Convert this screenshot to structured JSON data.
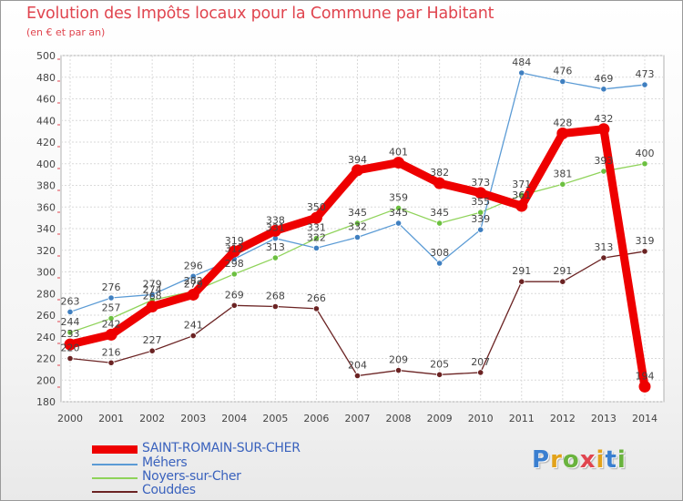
{
  "title": "Evolution des Impôts locaux pour la Commune par Habitant",
  "subtitle": "(en € et par an)",
  "logo": {
    "letters": [
      {
        "ch": "P",
        "color": "#3a7fd0"
      },
      {
        "ch": "r",
        "color": "#e2a21a"
      },
      {
        "ch": "o",
        "color": "#6ab33e"
      },
      {
        "ch": "x",
        "color": "#e0454f"
      },
      {
        "ch": "i",
        "color": "#e2a21a"
      },
      {
        "ch": "t",
        "color": "#3a7fd0"
      },
      {
        "ch": "i",
        "color": "#6ab33e"
      }
    ]
  },
  "chart_data": {
    "type": "line",
    "title": "Evolution des Impôts locaux pour la Commune par Habitant",
    "subtitle": "(en € et par an)",
    "x": [
      2000,
      2001,
      2002,
      2003,
      2004,
      2005,
      2006,
      2007,
      2008,
      2009,
      2010,
      2011,
      2012,
      2013,
      2014
    ],
    "ylim": [
      180,
      500
    ],
    "ytick_step": 20,
    "grid": true,
    "legend_position": "bottom-left",
    "series": [
      {
        "name": "SAINT-ROMAIN-SUR-CHER",
        "color": "#ee0000",
        "emphasis": true,
        "values": [
          233,
          242,
          268,
          279,
          319,
          338,
          350,
          394,
          401,
          382,
          373,
          361,
          428,
          432,
          194
        ],
        "labels": [
          "233",
          "242",
          "268",
          "279",
          "319",
          "338",
          "350",
          "394",
          "401",
          "382",
          "373",
          "361",
          "428",
          "432",
          "194"
        ]
      },
      {
        "name": "Méhers",
        "color": "#5b9bd5",
        "dot": "#3f7fc0",
        "values": [
          263,
          276,
          279,
          296,
          312,
          331,
          322,
          332,
          345,
          308,
          339,
          484,
          476,
          469,
          473
        ],
        "labels": [
          "263",
          "276",
          "279",
          "296",
          "312",
          "331",
          "322",
          "332",
          "345",
          "308",
          "339",
          "484",
          "476",
          "469",
          "473"
        ]
      },
      {
        "name": "Noyers-sur-Cher",
        "color": "#8fd35a",
        "dot": "#6cc040",
        "values": [
          244,
          257,
          274,
          282,
          298,
          313,
          331,
          345,
          359,
          345,
          355,
          371,
          381,
          393,
          400
        ],
        "labels": [
          "244",
          "257",
          "274",
          "282",
          "298",
          "313",
          "331",
          "345",
          "359",
          "345",
          "355",
          "371",
          "381",
          "393",
          "400"
        ]
      },
      {
        "name": "Couddes",
        "color": "#6b2323",
        "dot": "#6b2323",
        "values": [
          220,
          216,
          227,
          241,
          269,
          268,
          266,
          204,
          209,
          205,
          207,
          291,
          291,
          313,
          319
        ],
        "labels": [
          "220",
          "216",
          "227",
          "241",
          "269",
          "268",
          "266",
          "204",
          "209",
          "205",
          "207",
          "291",
          "291",
          "313",
          "319"
        ]
      }
    ]
  }
}
